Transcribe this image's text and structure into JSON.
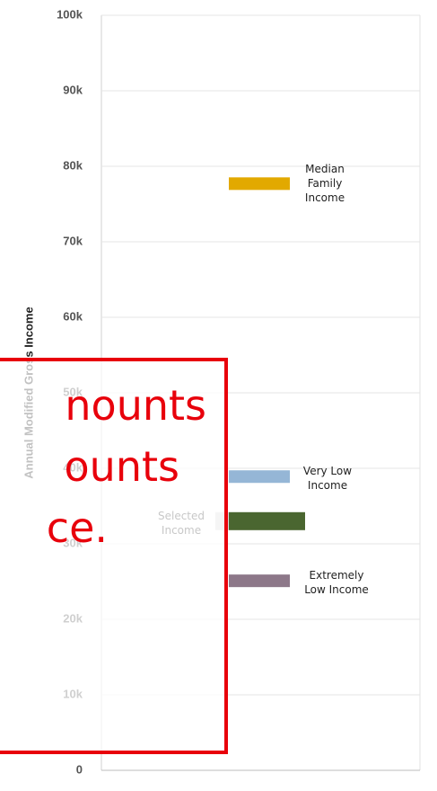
{
  "chart_data": {
    "type": "bar",
    "y_label": "Annual Modified Gross Income",
    "categories": [
      "Median Family Income",
      "Very Low Income",
      "Selected Income",
      "Extremely Low Income"
    ],
    "values": [
      77700,
      38900,
      33000,
      25100
    ],
    "colors": [
      "#e2a900",
      "#95b6d6",
      "#4a6630",
      "#8d7889"
    ],
    "ylim": [
      0,
      100000
    ],
    "yticks": [
      0,
      {
        "value": 10000,
        "label": "10k"
      },
      {
        "value": 20000,
        "label": "20k"
      },
      {
        "value": 30000,
        "label": "30k"
      },
      {
        "value": 40000,
        "label": "40k"
      },
      {
        "value": 50000,
        "label": "50k"
      },
      {
        "value": 60000,
        "label": "60k"
      },
      {
        "value": 70000,
        "label": "70k"
      },
      {
        "value": 80000,
        "label": "80k"
      },
      {
        "value": 90000,
        "label": "90k"
      },
      {
        "value": 100000,
        "label": "100k"
      }
    ],
    "grid": true
  },
  "overlay": {
    "lines": [
      "nounts",
      "ounts",
      "ce."
    ]
  }
}
